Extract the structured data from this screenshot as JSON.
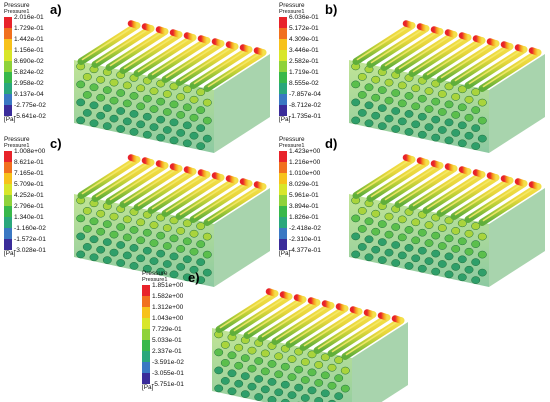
{
  "quantity_label": "Pressure",
  "variable_label": "Pressure1",
  "unit": "[Pa]",
  "color_scale": [
    "#e8232a",
    "#f1701e",
    "#f7c21b",
    "#d8e62a",
    "#8fd23a",
    "#38b84a",
    "#2aa77c",
    "#3a78c3",
    "#3a2c9a"
  ],
  "panels": [
    {
      "letter": "a)",
      "ticks": [
        "2.016e-01",
        "1.729e-01",
        "1.442e-01",
        "1.156e-01",
        "8.690e-02",
        "5.824e-02",
        "2.958e-02",
        "9.137e-04",
        "-2.775e-02",
        "-5.641e-02"
      ]
    },
    {
      "letter": "b)",
      "ticks": [
        "6.036e-01",
        "5.172e-01",
        "4.309e-01",
        "3.446e-01",
        "2.582e-01",
        "1.719e-01",
        "8.555e-02",
        "-7.857e-04",
        "-8.712e-02",
        "-1.735e-01"
      ]
    },
    {
      "letter": "c)",
      "ticks": [
        "1.008e+00",
        "8.621e-01",
        "7.165e-01",
        "5.709e-01",
        "4.252e-01",
        "2.796e-01",
        "1.340e-01",
        "-1.160e-02",
        "-1.572e-01",
        "-3.028e-01"
      ]
    },
    {
      "letter": "d)",
      "ticks": [
        "1.423e+00",
        "1.216e+00",
        "1.010e+00",
        "8.029e-01",
        "5.961e-01",
        "3.894e-01",
        "1.826e-01",
        "-2.418e-02",
        "-2.310e-01",
        "-4.377e-01"
      ]
    },
    {
      "letter": "e)",
      "ticks": [
        "1.851e+00",
        "1.582e+00",
        "1.312e+00",
        "1.043e+00",
        "7.729e-01",
        "5.033e-01",
        "2.337e-01",
        "-3.591e-02",
        "-3.055e-01",
        "-5.751e-01"
      ]
    }
  ]
}
